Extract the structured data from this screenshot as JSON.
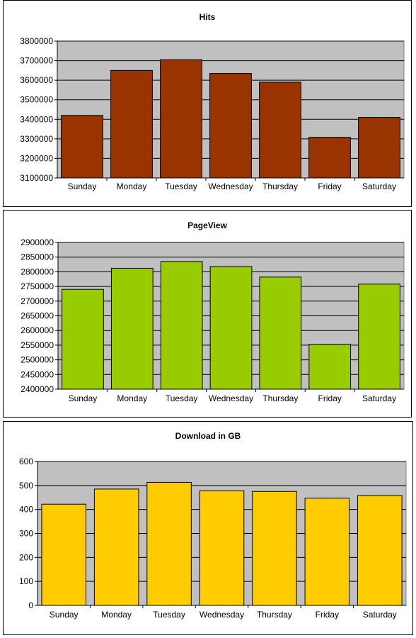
{
  "chart_data": [
    {
      "type": "bar",
      "title": "Hits",
      "categories": [
        "Sunday",
        "Monday",
        "Tuesday",
        "Wednesday",
        "Thursday",
        "Friday",
        "Saturday"
      ],
      "values": [
        3420000,
        3650000,
        3705000,
        3635000,
        3590000,
        3308000,
        3410000
      ],
      "ylim": [
        3100000,
        3800000
      ],
      "yticks": [
        "3100000",
        "3200000",
        "3300000",
        "3400000",
        "3500000",
        "3600000",
        "3700000",
        "3800000"
      ],
      "xlabel": "",
      "ylabel": "",
      "grid": true,
      "bar_color": "#993300",
      "plot_background": "#C0C0C0"
    },
    {
      "type": "bar",
      "title": "PageView",
      "categories": [
        "Sunday",
        "Monday",
        "Tuesday",
        "Wednesday",
        "Thursday",
        "Friday",
        "Saturday"
      ],
      "values": [
        2740000,
        2812000,
        2835000,
        2818000,
        2782000,
        2553000,
        2758000
      ],
      "ylim": [
        2400000,
        2900000
      ],
      "yticks": [
        "2400000",
        "2450000",
        "2500000",
        "2550000",
        "2600000",
        "2650000",
        "2700000",
        "2750000",
        "2800000",
        "2850000",
        "2900000"
      ],
      "xlabel": "",
      "ylabel": "",
      "grid": true,
      "bar_color": "#99CC00",
      "plot_background": "#C0C0C0"
    },
    {
      "type": "bar",
      "title": "Download in GB",
      "categories": [
        "Sunday",
        "Monday",
        "Tuesday",
        "Wednesday",
        "Thursday",
        "Friday",
        "Saturday"
      ],
      "values": [
        422,
        485,
        513,
        478,
        475,
        447,
        458
      ],
      "ylim": [
        0,
        600
      ],
      "yticks": [
        "0",
        "100",
        "200",
        "300",
        "400",
        "500",
        "600"
      ],
      "xlabel": "",
      "ylabel": "",
      "grid": true,
      "bar_color": "#FFCC00",
      "plot_background": "#C0C0C0"
    }
  ]
}
